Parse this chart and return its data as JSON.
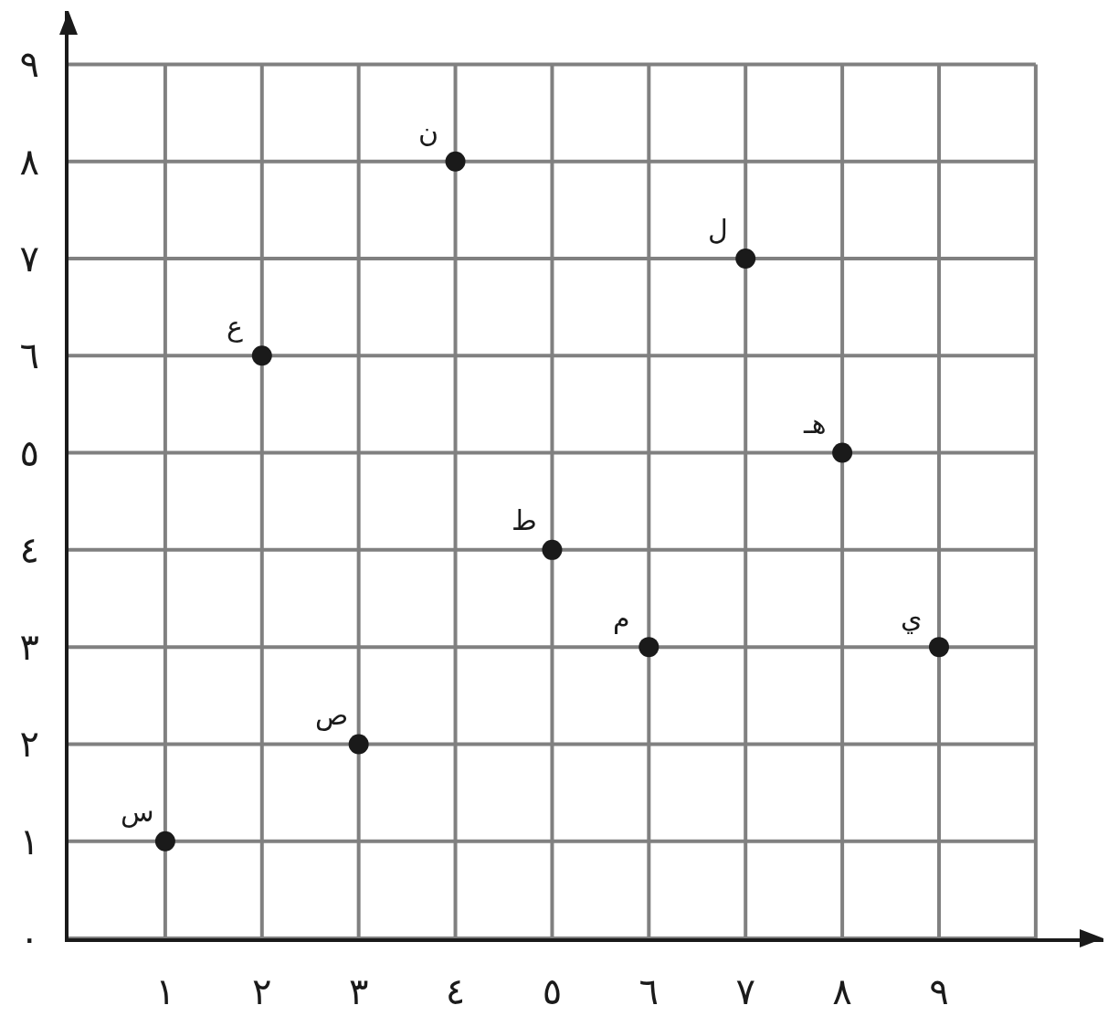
{
  "chart_data": {
    "type": "scatter",
    "series": [
      {
        "color": "#1a1a1a",
        "x": [
          1,
          2,
          3,
          4,
          5,
          6,
          7,
          8,
          9
        ],
        "values": [
          1,
          6,
          2,
          8,
          4,
          3,
          7,
          5,
          3
        ]
      }
    ],
    "marker": "circle",
    "grid": true,
    "legend": false,
    "xlim": [
      0,
      10.7
    ],
    "ylim": [
      0,
      9.55
    ],
    "xticks": [
      {
        "value": 1,
        "label": "١"
      },
      {
        "value": 2,
        "label": "٢"
      },
      {
        "value": 3,
        "label": "٣"
      },
      {
        "value": 4,
        "label": "٤"
      },
      {
        "value": 5,
        "label": "٥"
      },
      {
        "value": 6,
        "label": "٦"
      },
      {
        "value": 7,
        "label": "٧"
      },
      {
        "value": 8,
        "label": "٨"
      },
      {
        "value": 9,
        "label": "٩"
      },
      {
        "value": 10,
        "label": null
      }
    ],
    "yticks": [
      {
        "value": 0,
        "label": "٠"
      },
      {
        "value": 1,
        "label": "١"
      },
      {
        "value": 2,
        "label": "٢"
      },
      {
        "value": 3,
        "label": "٣"
      },
      {
        "value": 4,
        "label": "٤"
      },
      {
        "value": 5,
        "label": "٥"
      },
      {
        "value": 6,
        "label": "٦"
      },
      {
        "value": 7,
        "label": "٧"
      },
      {
        "value": 8,
        "label": "٨"
      },
      {
        "value": 9,
        "label": "٩"
      }
    ],
    "annotations": [
      {
        "text": "س",
        "x": 1,
        "y": 1
      },
      {
        "text": "ع",
        "x": 2,
        "y": 6
      },
      {
        "text": "ص",
        "x": 3,
        "y": 2
      },
      {
        "text": "ن",
        "x": 4,
        "y": 8
      },
      {
        "text": "ط",
        "x": 5,
        "y": 4
      },
      {
        "text": "م",
        "x": 6,
        "y": 3
      },
      {
        "text": "ل",
        "x": 7,
        "y": 7
      },
      {
        "text": "هـ",
        "x": 8,
        "y": 5
      },
      {
        "text": "ي",
        "x": 9,
        "y": 3
      }
    ]
  }
}
